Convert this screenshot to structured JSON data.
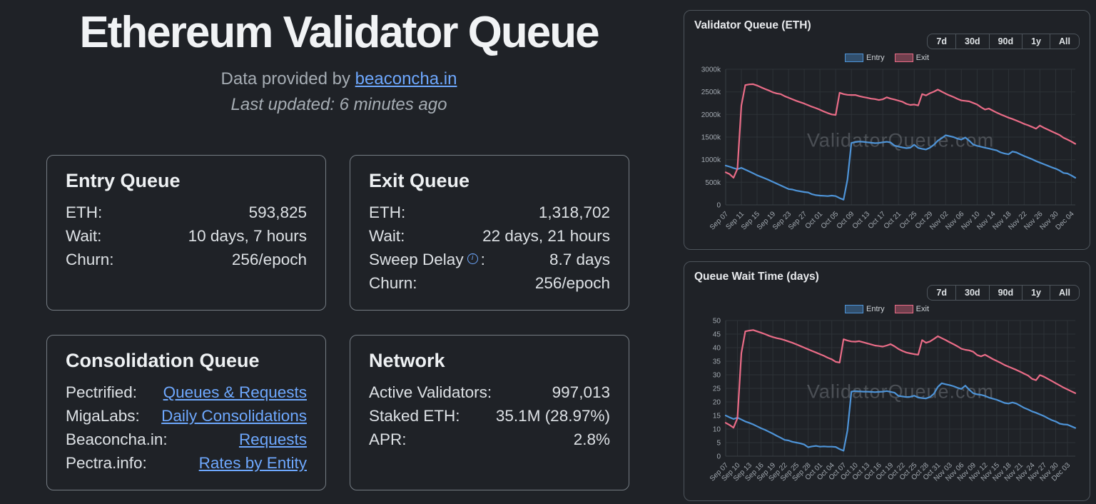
{
  "header": {
    "title": "Ethereum Validator Queue",
    "provided_prefix": "Data provided by",
    "provider_link": "beaconcha.in",
    "last_updated": "Last updated: 6 minutes ago"
  },
  "cards": {
    "entry_queue": {
      "title": "Entry Queue",
      "rows": [
        {
          "label": "ETH:",
          "value": "593,825"
        },
        {
          "label": "Wait:",
          "value": "10 days, 7 hours"
        },
        {
          "label": "Churn:",
          "value": "256/epoch"
        }
      ]
    },
    "exit_queue": {
      "title": "Exit Queue",
      "rows": [
        {
          "label": "ETH:",
          "value": "1,318,702"
        },
        {
          "label": "Wait:",
          "value": "22 days, 21 hours"
        },
        {
          "label": "Sweep Delay",
          "label_suffix": ":",
          "value": "8.7 days"
        },
        {
          "label": "Churn:",
          "value": "256/epoch"
        }
      ]
    },
    "consolidation_queue": {
      "title": "Consolidation Queue",
      "rows": [
        {
          "label": "Pectrified:",
          "link": "Queues & Requests"
        },
        {
          "label": "MigaLabs:",
          "link": "Daily Consolidations"
        },
        {
          "label": "Beaconcha.in:",
          "link": "Requests"
        },
        {
          "label": "Pectra.info:",
          "link": "Rates by Entity"
        }
      ]
    },
    "network": {
      "title": "Network",
      "rows": [
        {
          "label": "Active Validators:",
          "value": "997,013"
        },
        {
          "label": "Staked ETH:",
          "value": "35.1M (28.97%)"
        },
        {
          "label": "APR:",
          "value": "2.8%"
        }
      ]
    }
  },
  "icons": {
    "info_glyph": "i"
  },
  "time_ranges": [
    "7d",
    "30d",
    "90d",
    "1y",
    "All"
  ],
  "watermark": "ValidatorQueue.com",
  "colors": {
    "entry": "#4e94d8",
    "exit": "#ea6c87",
    "link": "#6ea8fe"
  },
  "chart_data": [
    {
      "type": "line",
      "title": "Validator Queue (ETH)",
      "watermark": "ValidatorQueue.com",
      "ylim": [
        0,
        3000
      ],
      "ytick_step": 500,
      "ytick_suffix": "k",
      "tick_every": 4,
      "legend_position": "top-center",
      "grid": true,
      "x": [
        "Sep 07",
        "Sep 08",
        "Sep 09",
        "Sep 10",
        "Sep 11",
        "Sep 12",
        "Sep 13",
        "Sep 14",
        "Sep 15",
        "Sep 16",
        "Sep 17",
        "Sep 18",
        "Sep 19",
        "Sep 20",
        "Sep 21",
        "Sep 22",
        "Sep 23",
        "Sep 24",
        "Sep 25",
        "Sep 26",
        "Sep 27",
        "Sep 28",
        "Sep 29",
        "Sep 30",
        "Oct 01",
        "Oct 02",
        "Oct 03",
        "Oct 04",
        "Oct 05",
        "Oct 06",
        "Oct 07",
        "Oct 08",
        "Oct 09",
        "Oct 10",
        "Oct 11",
        "Oct 12",
        "Oct 13",
        "Oct 14",
        "Oct 15",
        "Oct 16",
        "Oct 17",
        "Oct 18",
        "Oct 19",
        "Oct 20",
        "Oct 21",
        "Oct 22",
        "Oct 23",
        "Oct 24",
        "Oct 25",
        "Oct 26",
        "Oct 27",
        "Oct 28",
        "Oct 29",
        "Oct 30",
        "Oct 31",
        "Nov 01",
        "Nov 02",
        "Nov 03",
        "Nov 04",
        "Nov 05",
        "Nov 06",
        "Nov 07",
        "Nov 08",
        "Nov 09",
        "Nov 10",
        "Nov 11",
        "Nov 12",
        "Nov 13",
        "Nov 14",
        "Nov 15",
        "Nov 16",
        "Nov 17",
        "Nov 18",
        "Nov 19",
        "Nov 20",
        "Nov 21",
        "Nov 22",
        "Nov 23",
        "Nov 24",
        "Nov 25",
        "Nov 26",
        "Nov 27",
        "Nov 28",
        "Nov 29",
        "Nov 30",
        "Dec 01",
        "Dec 02",
        "Dec 03",
        "Dec 04",
        "Dec 05"
      ],
      "series": [
        {
          "name": "Entry",
          "color": "#4e94d8",
          "values": [
            870,
            845,
            815,
            790,
            820,
            780,
            740,
            700,
            655,
            620,
            585,
            550,
            510,
            470,
            430,
            390,
            350,
            340,
            315,
            300,
            285,
            275,
            235,
            215,
            205,
            200,
            195,
            205,
            195,
            150,
            115,
            560,
            1370,
            1390,
            1400,
            1395,
            1385,
            1375,
            1365,
            1370,
            1385,
            1395,
            1380,
            1310,
            1290,
            1270,
            1255,
            1265,
            1330,
            1260,
            1240,
            1225,
            1265,
            1330,
            1420,
            1475,
            1540,
            1520,
            1500,
            1465,
            1445,
            1490,
            1420,
            1335,
            1305,
            1285,
            1265,
            1245,
            1225,
            1205,
            1160,
            1135,
            1120,
            1180,
            1160,
            1120,
            1080,
            1045,
            1010,
            970,
            935,
            900,
            865,
            830,
            800,
            760,
            705,
            695,
            650,
            600
          ]
        },
        {
          "name": "Exit",
          "color": "#ea6c87",
          "values": [
            720,
            680,
            600,
            800,
            2200,
            2650,
            2665,
            2670,
            2640,
            2600,
            2565,
            2530,
            2490,
            2465,
            2450,
            2405,
            2370,
            2335,
            2300,
            2270,
            2240,
            2205,
            2170,
            2140,
            2105,
            2065,
            2030,
            2000,
            1990,
            2480,
            2450,
            2435,
            2430,
            2430,
            2405,
            2385,
            2370,
            2350,
            2340,
            2320,
            2335,
            2380,
            2350,
            2330,
            2305,
            2280,
            2235,
            2210,
            2220,
            2200,
            2450,
            2420,
            2470,
            2505,
            2550,
            2505,
            2460,
            2420,
            2385,
            2345,
            2310,
            2300,
            2290,
            2255,
            2220,
            2160,
            2110,
            2130,
            2085,
            2040,
            2000,
            1965,
            1930,
            1900,
            1865,
            1830,
            1790,
            1760,
            1725,
            1685,
            1755,
            1705,
            1665,
            1625,
            1585,
            1545,
            1485,
            1445,
            1400,
            1350
          ]
        }
      ]
    },
    {
      "type": "line",
      "title": "Queue Wait Time (days)",
      "watermark": "ValidatorQueue.com",
      "ylim": [
        0,
        50
      ],
      "ytick_step": 5,
      "ytick_suffix": "",
      "tick_every": 3,
      "legend_position": "top-center",
      "grid": true,
      "x": [
        "Sep 07",
        "Sep 08",
        "Sep 09",
        "Sep 10",
        "Sep 11",
        "Sep 12",
        "Sep 13",
        "Sep 14",
        "Sep 15",
        "Sep 16",
        "Sep 17",
        "Sep 18",
        "Sep 19",
        "Sep 20",
        "Sep 21",
        "Sep 22",
        "Sep 23",
        "Sep 24",
        "Sep 25",
        "Sep 26",
        "Sep 27",
        "Sep 28",
        "Sep 29",
        "Sep 30",
        "Oct 01",
        "Oct 02",
        "Oct 03",
        "Oct 04",
        "Oct 05",
        "Oct 06",
        "Oct 07",
        "Oct 08",
        "Oct 09",
        "Oct 10",
        "Oct 11",
        "Oct 12",
        "Oct 13",
        "Oct 14",
        "Oct 15",
        "Oct 16",
        "Oct 17",
        "Oct 18",
        "Oct 19",
        "Oct 20",
        "Oct 21",
        "Oct 22",
        "Oct 23",
        "Oct 24",
        "Oct 25",
        "Oct 26",
        "Oct 27",
        "Oct 28",
        "Oct 29",
        "Oct 30",
        "Oct 31",
        "Nov 01",
        "Nov 02",
        "Nov 03",
        "Nov 04",
        "Nov 05",
        "Nov 06",
        "Nov 07",
        "Nov 08",
        "Nov 09",
        "Nov 10",
        "Nov 11",
        "Nov 12",
        "Nov 13",
        "Nov 14",
        "Nov 15",
        "Nov 16",
        "Nov 17",
        "Nov 18",
        "Nov 19",
        "Nov 20",
        "Nov 21",
        "Nov 22",
        "Nov 23",
        "Nov 24",
        "Nov 25",
        "Nov 26",
        "Nov 27",
        "Nov 28",
        "Nov 29",
        "Nov 30",
        "Dec 01",
        "Dec 02",
        "Dec 03",
        "Dec 04",
        "Dec 05"
      ],
      "series": [
        {
          "name": "Entry",
          "color": "#4e94d8",
          "values": [
            15.0,
            14.3,
            13.7,
            14.2,
            13.5,
            12.8,
            12.3,
            11.7,
            11.0,
            10.3,
            9.7,
            9.0,
            8.3,
            7.5,
            6.8,
            6.0,
            5.8,
            5.3,
            5.0,
            4.7,
            4.3,
            3.3,
            3.6,
            3.8,
            3.5,
            3.6,
            3.5,
            3.5,
            3.4,
            2.6,
            2.0,
            9.5,
            23.8,
            24.0,
            23.9,
            23.8,
            23.8,
            23.7,
            23.6,
            23.7,
            23.8,
            24.0,
            23.7,
            23.4,
            22.2,
            22.0,
            21.8,
            21.9,
            22.3,
            21.6,
            21.4,
            21.3,
            21.8,
            23.0,
            25.5,
            26.9,
            26.5,
            26.2,
            25.8,
            25.2,
            24.8,
            26.0,
            24.5,
            23.2,
            22.8,
            22.6,
            22.2,
            21.6,
            21.2,
            20.8,
            20.2,
            19.6,
            19.4,
            19.8,
            19.4,
            18.6,
            17.8,
            17.2,
            16.5,
            16.0,
            15.4,
            14.8,
            14.0,
            13.3,
            12.8,
            12.0,
            11.7,
            11.6,
            11.0,
            10.4
          ]
        },
        {
          "name": "Exit",
          "color": "#ea6c87",
          "values": [
            12.3,
            11.5,
            10.5,
            14.0,
            38.0,
            46.0,
            46.3,
            46.5,
            46.0,
            45.5,
            45.0,
            44.4,
            43.9,
            43.5,
            43.2,
            42.8,
            42.3,
            41.8,
            41.2,
            40.6,
            40.0,
            39.4,
            38.8,
            38.2,
            37.6,
            37.0,
            36.3,
            35.7,
            34.8,
            34.5,
            43.1,
            42.6,
            42.3,
            42.2,
            42.4,
            42.0,
            41.6,
            41.2,
            40.8,
            40.6,
            40.4,
            40.8,
            41.3,
            40.5,
            39.5,
            38.8,
            38.2,
            37.9,
            37.6,
            37.4,
            42.8,
            41.8,
            42.3,
            43.2,
            44.2,
            43.5,
            42.8,
            42.0,
            41.3,
            40.5,
            39.6,
            39.2,
            39.0,
            38.5,
            37.3,
            36.8,
            37.4,
            36.6,
            35.8,
            35.1,
            34.4,
            33.6,
            33.0,
            32.4,
            31.8,
            31.1,
            30.4,
            29.7,
            28.5,
            28.0,
            29.9,
            29.3,
            28.5,
            27.7,
            26.9,
            26.1,
            25.3,
            24.6,
            23.9,
            23.2
          ]
        }
      ]
    }
  ]
}
